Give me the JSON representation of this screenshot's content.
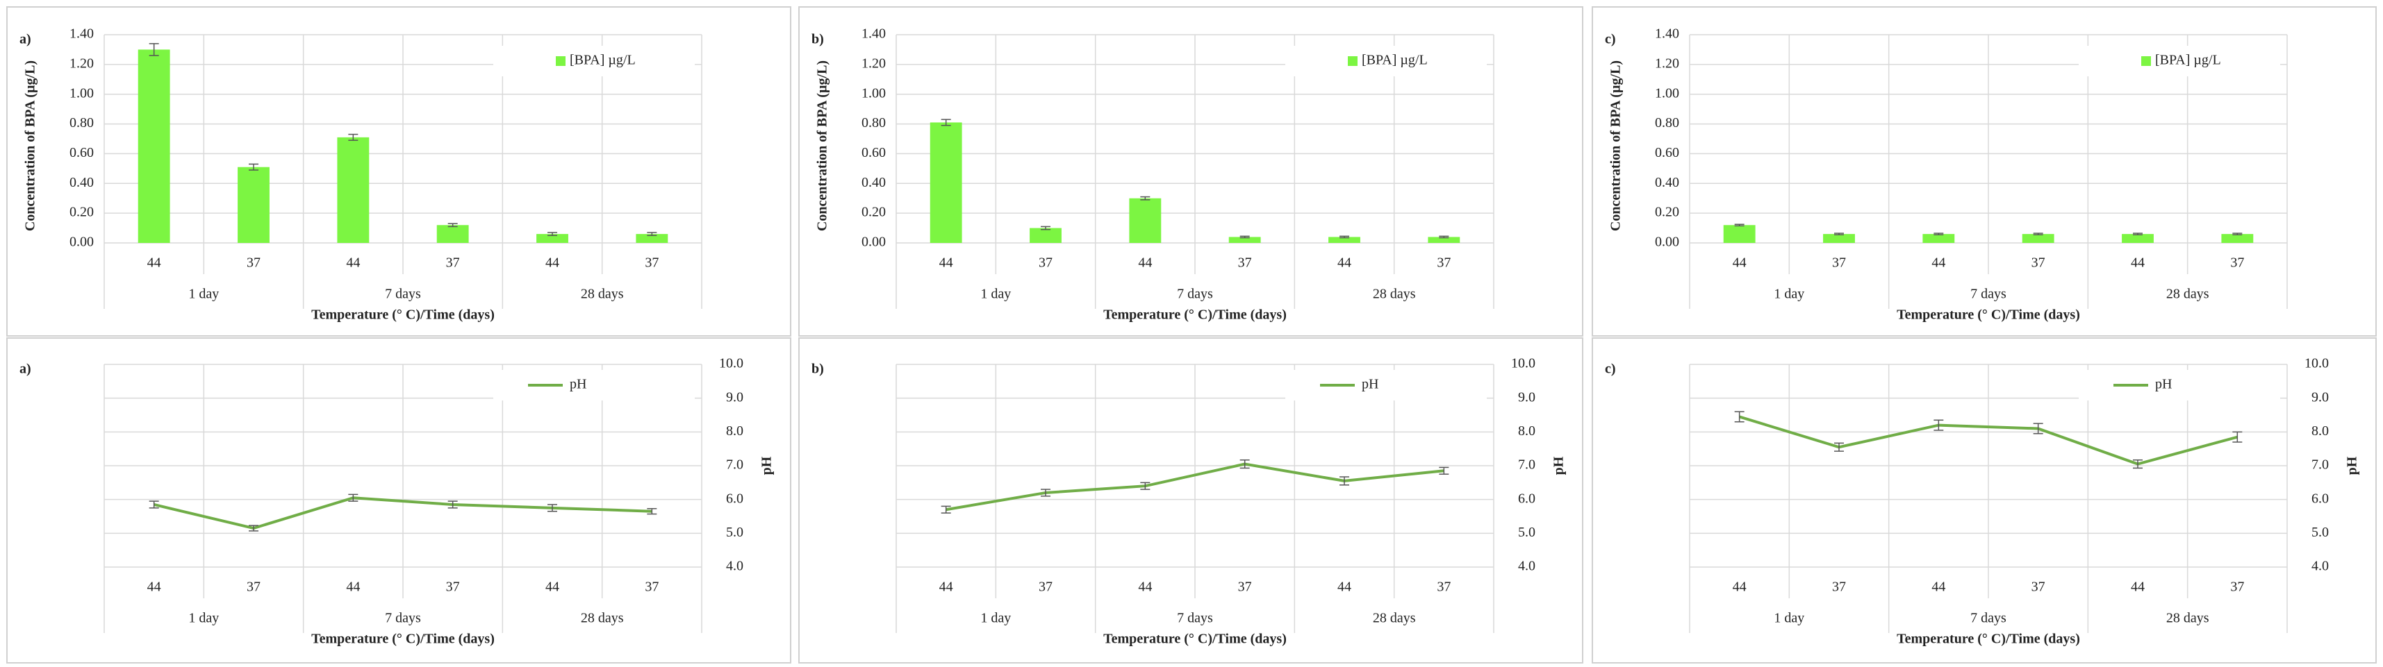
{
  "chart_data": [
    {
      "type": "bar",
      "panel_label": "a)",
      "y_label": "Concentration of BPA (µg/L)",
      "x_label": "Temperature (° C)/Time (days)",
      "categories": [
        "44",
        "37",
        "44",
        "37",
        "44",
        "37"
      ],
      "groups": [
        "1 day",
        "7 days",
        "28 days"
      ],
      "series": [
        {
          "name": "[BPA] µg/L",
          "color": "#7cf542",
          "values": [
            1.3,
            0.51,
            0.71,
            0.12,
            0.06,
            0.06
          ],
          "errors": [
            0.04,
            0.02,
            0.02,
            0.01,
            0.01,
            0.01
          ]
        }
      ],
      "ylim": [
        0,
        1.4
      ],
      "yticks": [
        {
          "value": 0,
          "label": "0.00"
        },
        {
          "value": 0.2,
          "label": "0.20"
        },
        {
          "value": 0.4,
          "label": "0.40"
        },
        {
          "value": 0.6,
          "label": "0.60"
        },
        {
          "value": 0.8,
          "label": "0.80"
        },
        {
          "value": 1.0,
          "label": "1.00"
        },
        {
          "value": 1.2,
          "label": "1.20"
        },
        {
          "value": 1.4,
          "label": "1.40"
        }
      ],
      "grid": true,
      "legend": "top-right"
    },
    {
      "type": "bar",
      "panel_label": "b)",
      "y_label": "Concentration of BPA (µg/L)",
      "x_label": "Temperature (° C)/Time (days)",
      "categories": [
        "44",
        "37",
        "44",
        "37",
        "44",
        "37"
      ],
      "groups": [
        "1 day",
        "7 days",
        "28 days"
      ],
      "series": [
        {
          "name": "[BPA] µg/L",
          "color": "#7cf542",
          "values": [
            0.81,
            0.1,
            0.3,
            0.04,
            0.04,
            0.04
          ],
          "errors": [
            0.02,
            0.01,
            0.01,
            0.005,
            0.005,
            0.005
          ]
        }
      ],
      "ylim": [
        0,
        1.4
      ],
      "yticks": [
        {
          "value": 0,
          "label": "0.00"
        },
        {
          "value": 0.2,
          "label": "0.20"
        },
        {
          "value": 0.4,
          "label": "0.40"
        },
        {
          "value": 0.6,
          "label": "0.60"
        },
        {
          "value": 0.8,
          "label": "0.80"
        },
        {
          "value": 1.0,
          "label": "1.00"
        },
        {
          "value": 1.2,
          "label": "1.20"
        },
        {
          "value": 1.4,
          "label": "1.40"
        }
      ],
      "grid": true,
      "legend": "top-right"
    },
    {
      "type": "bar",
      "panel_label": "c)",
      "y_label": "Concentration of BPA (µg/L)",
      "x_label": "Temperature (° C)/Time (days)",
      "categories": [
        "44",
        "37",
        "44",
        "37",
        "44",
        "37"
      ],
      "groups": [
        "1 day",
        "7 days",
        "28 days"
      ],
      "series": [
        {
          "name": "[BPA] µg/L",
          "color": "#7cf542",
          "values": [
            0.12,
            0.06,
            0.06,
            0.06,
            0.06,
            0.06
          ],
          "errors": [
            0.005,
            0.005,
            0.005,
            0.005,
            0.005,
            0.005
          ]
        }
      ],
      "ylim": [
        0,
        1.4
      ],
      "yticks": [
        {
          "value": 0,
          "label": "0.00"
        },
        {
          "value": 0.2,
          "label": "0.20"
        },
        {
          "value": 0.4,
          "label": "0.40"
        },
        {
          "value": 0.6,
          "label": "0.60"
        },
        {
          "value": 0.8,
          "label": "0.80"
        },
        {
          "value": 1.0,
          "label": "1.00"
        },
        {
          "value": 1.2,
          "label": "1.20"
        },
        {
          "value": 1.4,
          "label": "1.40"
        }
      ],
      "grid": true,
      "legend": "top-right"
    },
    {
      "type": "line",
      "panel_label": "a)",
      "y2_label": "pH",
      "x_label": "Temperature (° C)/Time (days)",
      "categories": [
        "44",
        "37",
        "44",
        "37",
        "44",
        "37"
      ],
      "groups": [
        "1 day",
        "7 days",
        "28 days"
      ],
      "series": [
        {
          "name": "pH",
          "color": "#70ad47",
          "axis": "y2",
          "values": [
            5.85,
            5.15,
            6.05,
            5.85,
            5.75,
            5.65
          ],
          "errors": [
            0.1,
            0.08,
            0.1,
            0.1,
            0.1,
            0.08
          ]
        }
      ],
      "y2lim": [
        4,
        10
      ],
      "y2ticks": [
        {
          "value": 4,
          "label": "4.0"
        },
        {
          "value": 5,
          "label": "5.0"
        },
        {
          "value": 6,
          "label": "6.0"
        },
        {
          "value": 7,
          "label": "7.0"
        },
        {
          "value": 8,
          "label": "8.0"
        },
        {
          "value": 9,
          "label": "9.0"
        },
        {
          "value": 10,
          "label": "10.0"
        }
      ],
      "grid": true,
      "legend": "top-right"
    },
    {
      "type": "line",
      "panel_label": "b)",
      "y2_label": "pH",
      "x_label": "Temperature (° C)/Time (days)",
      "categories": [
        "44",
        "37",
        "44",
        "37",
        "44",
        "37"
      ],
      "groups": [
        "1 day",
        "7 days",
        "28 days"
      ],
      "series": [
        {
          "name": "pH",
          "color": "#70ad47",
          "axis": "y2",
          "values": [
            5.7,
            6.2,
            6.4,
            7.05,
            6.55,
            6.85
          ],
          "errors": [
            0.1,
            0.1,
            0.1,
            0.12,
            0.12,
            0.1
          ]
        }
      ],
      "y2lim": [
        4,
        10
      ],
      "y2ticks": [
        {
          "value": 4,
          "label": "4.0"
        },
        {
          "value": 5,
          "label": "5.0"
        },
        {
          "value": 6,
          "label": "6.0"
        },
        {
          "value": 7,
          "label": "7.0"
        },
        {
          "value": 8,
          "label": "8.0"
        },
        {
          "value": 9,
          "label": "9.0"
        },
        {
          "value": 10,
          "label": "10.0"
        }
      ],
      "grid": true,
      "legend": "top-right"
    },
    {
      "type": "line",
      "panel_label": "c)",
      "y2_label": "pH",
      "x_label": "Temperature (° C)/Time (days)",
      "categories": [
        "44",
        "37",
        "44",
        "37",
        "44",
        "37"
      ],
      "groups": [
        "1 day",
        "7 days",
        "28 days"
      ],
      "series": [
        {
          "name": "pH",
          "color": "#70ad47",
          "axis": "y2",
          "values": [
            8.45,
            7.55,
            8.2,
            8.1,
            7.05,
            7.85
          ],
          "errors": [
            0.15,
            0.12,
            0.15,
            0.15,
            0.12,
            0.15
          ]
        }
      ],
      "y2lim": [
        4,
        10
      ],
      "y2ticks": [
        {
          "value": 4,
          "label": "4.0"
        },
        {
          "value": 5,
          "label": "5.0"
        },
        {
          "value": 6,
          "label": "6.0"
        },
        {
          "value": 7,
          "label": "7.0"
        },
        {
          "value": 8,
          "label": "8.0"
        },
        {
          "value": 9,
          "label": "9.0"
        },
        {
          "value": 10,
          "label": "10.0"
        }
      ],
      "grid": true,
      "legend": "top-right"
    }
  ]
}
